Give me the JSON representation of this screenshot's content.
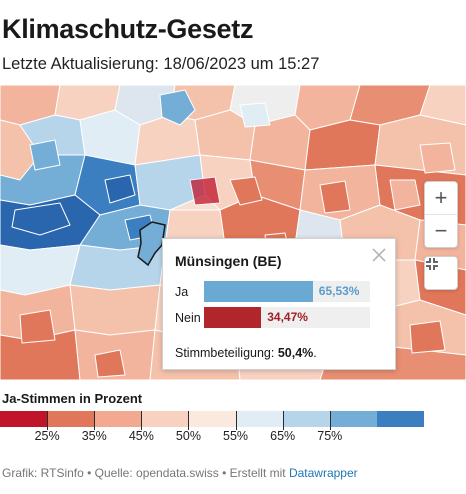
{
  "header": {
    "title": "Klimaschutz-Gesetz",
    "subtitle": "Letzte Aktualisierung: 18/06/2023 um 15:27"
  },
  "map": {
    "controls": {
      "zoom_in": "+",
      "zoom_out": "−",
      "fullscreen_icon": "fullscreen-icon"
    },
    "tooltip": {
      "title": "Münsingen (BE)",
      "ja_label": "Ja",
      "ja_value": "65,53%",
      "ja_fraction": 0.6553,
      "nein_label": "Nein",
      "nein_value": "34,47%",
      "nein_fraction": 0.3447,
      "turnout_label": "Stimmbeteiligung:",
      "turnout_value": "50,4%",
      "turnout_suffix": "."
    }
  },
  "legend": {
    "title": "Ja-Stimmen in Prozent",
    "colors": [
      "#c0142b",
      "#e0765a",
      "#f2a98f",
      "#f8d2c1",
      "#fbe9df",
      "#e0edf5",
      "#b7d5ea",
      "#74aed6",
      "#3b7fc0"
    ],
    "labels": [
      "25%",
      "35%",
      "45%",
      "50%",
      "55%",
      "65%",
      "75%"
    ]
  },
  "footer": {
    "text": "Grafik: RTSinfo • Quelle: opendata.swiss • Erstellt mit ",
    "link": "Datawrapper"
  },
  "colors": {
    "ja": "#6aa9d4",
    "ja_text": "#5a9ccc",
    "nein": "#b0262a",
    "nein_text": "#a12025"
  }
}
